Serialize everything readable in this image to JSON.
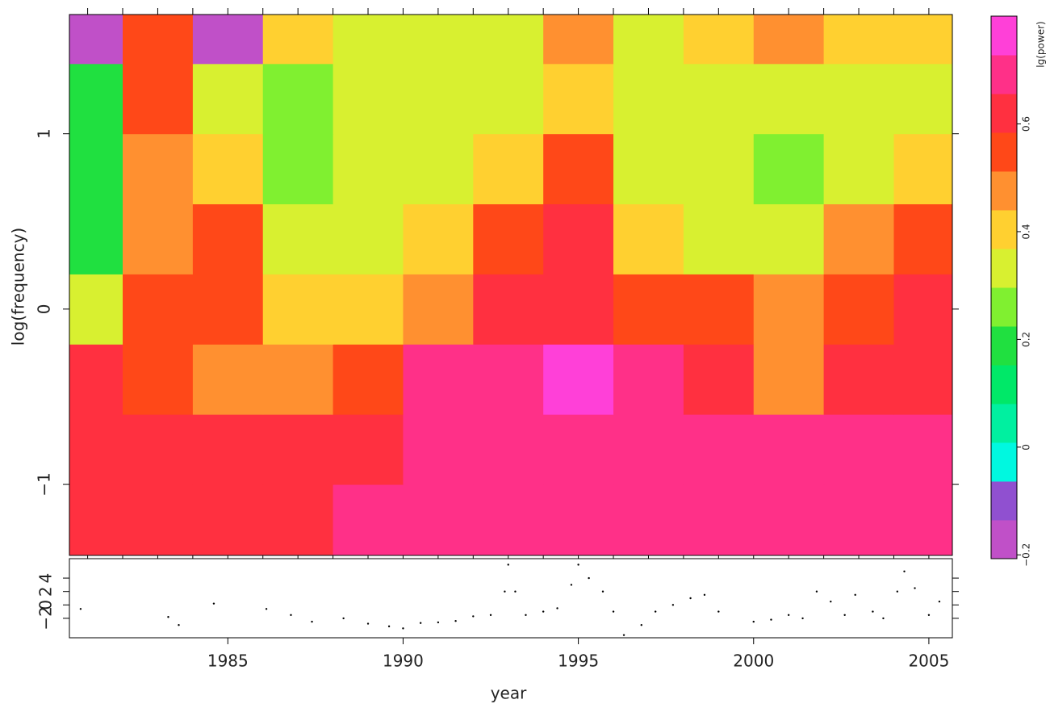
{
  "chart_data": [
    {
      "type": "heatmap",
      "ylabel": "log(frequency)",
      "x": [
        1981,
        1983,
        1985,
        1987,
        1989,
        1991,
        1993,
        1995,
        1997,
        1999,
        2001,
        2003,
        2005
      ],
      "y": [
        -1.2,
        -0.8,
        -0.4,
        0,
        0.4,
        0.8,
        1.2,
        1.6
      ],
      "z": [
        [
          0.62,
          0.62,
          0.62,
          0.65,
          0.68,
          0.72,
          0.72,
          0.72,
          0.72,
          0.72,
          0.72,
          0.72,
          0.72
        ],
        [
          0.6,
          0.6,
          0.6,
          0.6,
          0.65,
          0.72,
          0.72,
          0.72,
          0.72,
          0.72,
          0.72,
          0.72,
          0.72
        ],
        [
          0.6,
          0.55,
          0.5,
          0.5,
          0.55,
          0.7,
          0.72,
          0.75,
          0.7,
          0.62,
          0.45,
          0.6,
          0.6
        ],
        [
          0.3,
          0.55,
          0.55,
          0.4,
          0.38,
          0.5,
          0.6,
          0.65,
          0.55,
          0.55,
          0.45,
          0.55,
          0.65
        ],
        [
          0.22,
          0.45,
          0.55,
          0.3,
          0.35,
          0.4,
          0.55,
          0.6,
          0.4,
          0.35,
          0.35,
          0.45,
          0.55
        ],
        [
          0.22,
          0.45,
          0.4,
          0.25,
          0.3,
          0.3,
          0.4,
          0.55,
          0.3,
          0.35,
          0.25,
          0.35,
          0.4
        ],
        [
          0.22,
          0.55,
          0.3,
          0.25,
          0.3,
          0.3,
          0.35,
          0.4,
          0.3,
          0.3,
          0.3,
          0.35,
          0.35
        ],
        [
          -0.15,
          0.55,
          -0.15,
          0.4,
          0.3,
          0.35,
          0.35,
          0.45,
          0.35,
          0.4,
          0.45,
          0.4,
          0.4
        ]
      ],
      "xlim": [
        1980.48,
        2005.67
      ],
      "ylim": [
        -1.405,
        1.68
      ],
      "yticks": [
        {
          "value": -1,
          "label": "−1"
        },
        0,
        1
      ],
      "x_minor_ticks": [
        1981,
        1982,
        1983,
        1984,
        1985,
        1986,
        1987,
        1988,
        1989,
        1990,
        1991,
        1992,
        1993,
        1994,
        1995,
        1996,
        1997,
        1998,
        1999,
        2000,
        2001,
        2002,
        2003,
        2004,
        2005
      ],
      "colorbar": {
        "label": "lg(power)",
        "clim": [
          -0.207,
          0.8
        ],
        "colors": [
          "#c050c8",
          "#9050d0",
          "#00f8e0",
          "#00f0a0",
          "#00e868",
          "#20e040",
          "#80f030",
          "#d8f030",
          "#ffd030",
          "#ff9030",
          "#ff4818",
          "#ff3040",
          "#ff3088",
          "#ff40d8"
        ],
        "ticks": [
          {
            "value": -0.2,
            "label": "−0.2"
          },
          0,
          0.2,
          0.4,
          0.6
        ]
      }
    },
    {
      "type": "scatter",
      "xlabel": "year",
      "x": [
        1980.8,
        1983.3,
        1983.6,
        1984.6,
        1986.1,
        1986.8,
        1987.4,
        1988.3,
        1989,
        1989.6,
        1990,
        1990.5,
        1991,
        1991.5,
        1992,
        1992.5,
        1992.9,
        1993,
        1993.2,
        1993.5,
        1994,
        1994.4,
        1994.8,
        1995,
        1995.3,
        1995.7,
        1996,
        1996.3,
        1996.8,
        1997.2,
        1997.7,
        1998.2,
        1998.6,
        1999,
        2000,
        2000.5,
        2001,
        2001.4,
        2001.8,
        2002.2,
        2002.6,
        2002.9,
        2003.4,
        2003.7,
        2004.1,
        2004.3,
        2004.6,
        2005,
        2005.3
      ],
      "values": [
        -0.6,
        -1.8,
        -3,
        0.2,
        -0.6,
        -1.5,
        -2.5,
        -2,
        -2.8,
        -3.2,
        -3.5,
        -2.7,
        -2.6,
        -2.4,
        -1.7,
        -1.5,
        2,
        6,
        2,
        -1.5,
        -1,
        -0.5,
        3,
        6,
        4,
        2,
        -1,
        -4.5,
        -3,
        -1,
        0,
        1,
        1.5,
        -1,
        -2.5,
        -2.2,
        -1.5,
        -2,
        2,
        0.5,
        -1.5,
        1.5,
        -1,
        -2,
        2,
        5,
        2.5,
        -1.5,
        0.5
      ],
      "color": "#000000",
      "xlim": [
        1980.48,
        2005.67
      ],
      "ylim": [
        -4.9,
        6.9
      ],
      "xticks": [
        1985,
        1990,
        1995,
        2000,
        2005
      ],
      "yticks": [
        {
          "value": -2,
          "label": "−2"
        },
        0,
        2,
        4
      ]
    }
  ]
}
